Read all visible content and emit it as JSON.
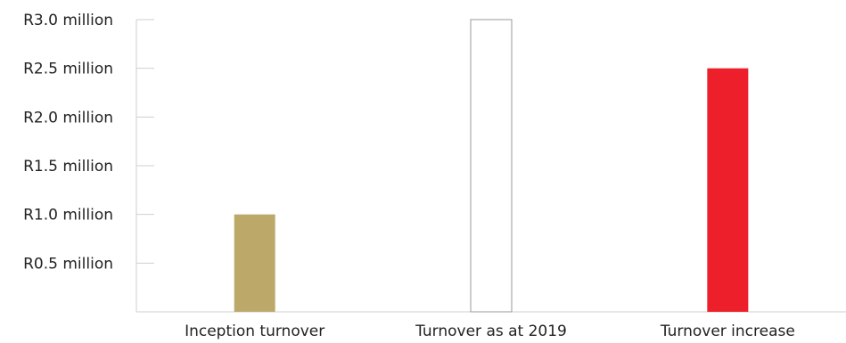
{
  "chart_data": {
    "type": "bar",
    "categories": [
      "Inception turnover",
      "Turnover as at 2019",
      "Turnover increase"
    ],
    "values": [
      1.0,
      3.0,
      2.5
    ],
    "unit": "million",
    "ylim": [
      0,
      3.0
    ],
    "yticks": [
      0.5,
      1.0,
      1.5,
      2.0,
      2.5,
      3.0
    ],
    "ytick_labels": [
      "R0.5 million",
      "R1.0 million",
      "R1.5 million",
      "R2.0 million",
      "R2.5 million",
      "R3.0 million"
    ],
    "bar_styles": [
      {
        "fill": "#bca96a",
        "stroke": "none"
      },
      {
        "fill": "#ffffff",
        "stroke": "#9a9a9a"
      },
      {
        "fill": "#ec1f2b",
        "stroke": "none"
      }
    ],
    "grid": false,
    "legend": "none"
  }
}
